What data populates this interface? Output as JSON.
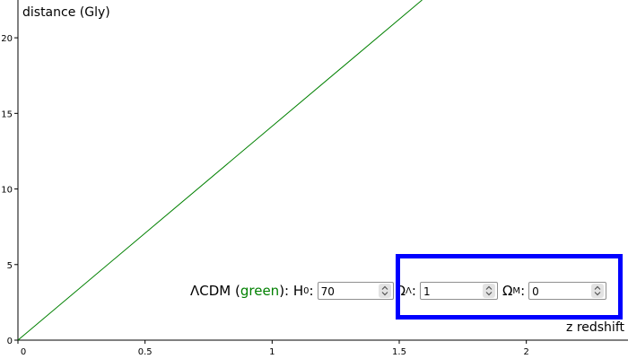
{
  "chart_data": {
    "type": "line",
    "title": "",
    "xlabel": "z redshift",
    "ylabel": "distance (Gly)",
    "xlim": [
      0,
      2.4
    ],
    "ylim": [
      0,
      22.5
    ],
    "x_ticks": [
      "0",
      "0.5",
      "1",
      "1.5",
      "2"
    ],
    "y_ticks": [
      "0",
      "5",
      "10",
      "15",
      "20"
    ],
    "grid": false,
    "series": [
      {
        "color": "#008000",
        "x": [
          0,
          1.59
        ],
        "y": [
          0,
          22.5
        ]
      }
    ]
  },
  "controls": {
    "model_prefix": "ΛCDM (",
    "model_color_word": "green",
    "model_suffix": "): H",
    "h0_sub": "0",
    "colon": ":",
    "h0_value": "70",
    "omega_symbol": "Ω",
    "omega_lambda_sub": "Λ",
    "omega_lambda_value": "1",
    "omega_m_sub": "M",
    "omega_m_value": "0"
  },
  "highlight_color": "#0000ff"
}
